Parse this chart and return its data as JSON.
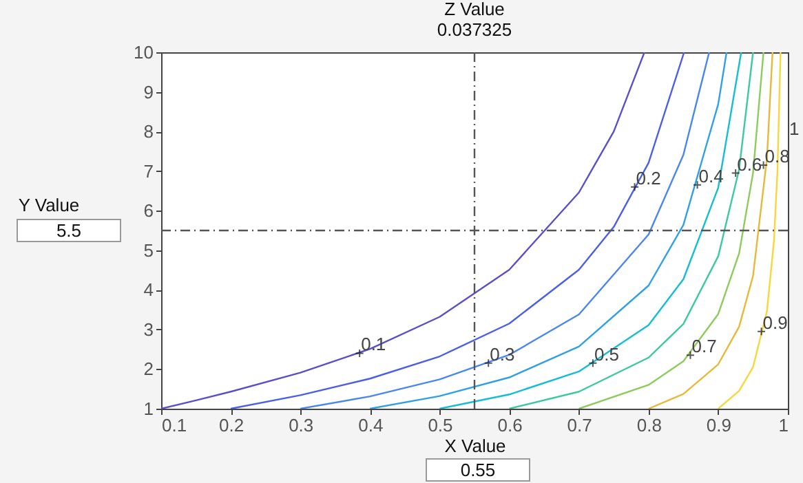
{
  "chart_data": {
    "type": "line",
    "title": "Z Value",
    "subtitle": "0.037325",
    "xlabel": "X Value",
    "ylabel": "Y Value",
    "xlim": [
      0.1,
      1
    ],
    "ylim": [
      1,
      10
    ],
    "xticks": [
      0.1,
      0.2,
      0.3,
      0.4,
      0.5,
      0.6,
      0.7,
      0.8,
      0.9,
      1
    ],
    "yticks": [
      1,
      2,
      3,
      4,
      5,
      6,
      7,
      8,
      9,
      10
    ],
    "grid": false,
    "marker": "none",
    "line_style": "solid",
    "series": [
      {
        "color": "#5a4fc9",
        "x": [
          0.1,
          0.15,
          0.2,
          0.3,
          0.4,
          0.5,
          0.6,
          0.7,
          0.75,
          0.794
        ],
        "values": [
          1,
          1.21,
          1.43,
          1.91,
          2.51,
          3.32,
          4.51,
          6.46,
          8.0,
          10
        ]
      },
      {
        "color": "#4b5ee8",
        "x": [
          0.2,
          0.3,
          0.4,
          0.5,
          0.6,
          0.7,
          0.75,
          0.8,
          0.851
        ],
        "values": [
          1,
          1.34,
          1.76,
          2.32,
          3.15,
          4.51,
          5.59,
          7.21,
          10
        ]
      },
      {
        "color": "#4a86f0",
        "x": [
          0.3,
          0.4,
          0.5,
          0.6,
          0.7,
          0.8,
          0.85,
          0.887
        ],
        "values": [
          1,
          1.31,
          1.74,
          2.36,
          3.38,
          5.4,
          7.41,
          10
        ]
      },
      {
        "color": "#2fa0e8",
        "x": [
          0.4,
          0.5,
          0.6,
          0.7,
          0.8,
          0.85,
          0.9,
          0.912
        ],
        "values": [
          1,
          1.32,
          1.79,
          2.57,
          4.11,
          5.64,
          8.69,
          10
        ]
      },
      {
        "color": "#13bed3",
        "x": [
          0.5,
          0.6,
          0.7,
          0.8,
          0.85,
          0.9,
          0.933
        ],
        "values": [
          1,
          1.36,
          1.94,
          3.11,
          4.27,
          6.58,
          10
        ]
      },
      {
        "color": "#3cc8a0",
        "x": [
          0.6,
          0.7,
          0.8,
          0.85,
          0.9,
          0.93,
          0.95
        ],
        "values": [
          1,
          1.43,
          2.29,
          3.14,
          4.85,
          7.04,
          10
        ]
      },
      {
        "color": "#8ccb5c",
        "x": [
          0.7,
          0.8,
          0.85,
          0.9,
          0.93,
          0.95,
          0.965
        ],
        "values": [
          1,
          1.6,
          2.2,
          3.39,
          4.92,
          6.95,
          10
        ]
      },
      {
        "color": "#e6b93a",
        "x": [
          0.8,
          0.85,
          0.9,
          0.93,
          0.95,
          0.97,
          0.978
        ],
        "values": [
          1,
          1.37,
          2.12,
          3.07,
          4.35,
          7.33,
          10
        ]
      },
      {
        "color": "#f6d83a",
        "x": [
          0.9,
          0.93,
          0.95,
          0.97,
          0.98,
          0.985,
          0.9895
        ],
        "values": [
          1,
          1.45,
          2.05,
          3.46,
          5.22,
          6.97,
          10
        ]
      }
    ],
    "annotations": [
      {
        "text": "0.1",
        "x": 0.385,
        "y": 2.4
      },
      {
        "text": "0.2",
        "x": 0.78,
        "y": 6.6
      },
      {
        "text": "0.3",
        "x": 0.57,
        "y": 2.15
      },
      {
        "text": "0.4",
        "x": 0.87,
        "y": 6.65
      },
      {
        "text": "0.5",
        "x": 0.72,
        "y": 2.15
      },
      {
        "text": "0.6",
        "x": 0.925,
        "y": 6.95
      },
      {
        "text": "0.7",
        "x": 0.86,
        "y": 2.35
      },
      {
        "text": "0.8",
        "x": 0.965,
        "y": 7.15
      },
      {
        "text": "0.9",
        "x": 0.962,
        "y": 2.95
      },
      "5.5",
      "0.55",
      "1"
    ],
    "ref_lines": [
      {
        "axis": "x",
        "value": 0.55,
        "color": "#555555",
        "line_style": "dashdot"
      },
      {
        "axis": "y",
        "value": 5.5,
        "color": "#555555",
        "line_style": "dashdot"
      }
    ]
  }
}
